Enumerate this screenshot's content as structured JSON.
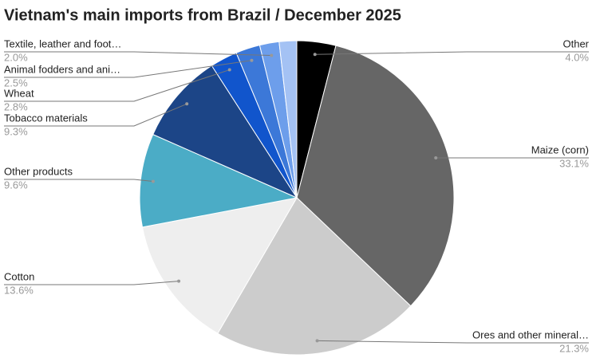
{
  "chart_data": {
    "type": "pie",
    "title": "Vietnam's main imports from Brazil / December 2025",
    "categories": [
      "Other",
      "Maize (corn)",
      "Ores and other mineral…",
      "Cotton",
      "Other products",
      "Tobacco materials",
      "Wheat",
      "Animal fodders and ani…",
      "Textile, leather and foot…",
      null
    ],
    "values": [
      4.0,
      33.1,
      21.3,
      13.6,
      9.6,
      9.3,
      2.8,
      2.5,
      2.0,
      1.8
    ],
    "value_labels": [
      "4.0%",
      "33.1%",
      "21.3%",
      "13.6%",
      "9.6%",
      "9.3%",
      "2.8%",
      "2.5%",
      "2.0%",
      null
    ],
    "colors": [
      "#000000",
      "#666666",
      "#cccccc",
      "#eeeeee",
      "#4bacc6",
      "#1c4587",
      "#1155cc",
      "#3c78d8",
      "#6d9eeb",
      "#a4c2f4"
    ]
  }
}
